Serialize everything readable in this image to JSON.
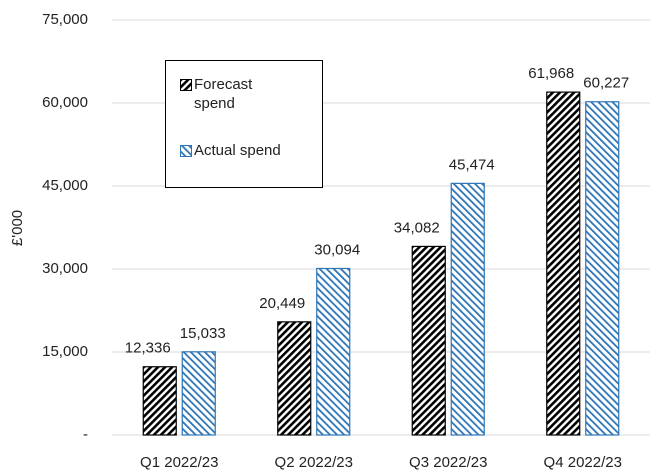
{
  "chart_data": {
    "type": "bar",
    "categories": [
      "Q1 2022/23",
      "Q2 2022/23",
      "Q3 2022/23",
      "Q4 2022/23"
    ],
    "series": [
      {
        "name": "Forecast spend",
        "color": "#000000",
        "values": [
          12336,
          20449,
          34082,
          61968
        ],
        "value_labels": [
          "12,336",
          "20,449",
          "34,082",
          "61,968"
        ]
      },
      {
        "name": "Actual spend",
        "color": "#2e75b6",
        "values": [
          15033,
          30094,
          45474,
          60227
        ],
        "value_labels": [
          "15,033",
          "30,094",
          "45,474",
          "60,227"
        ]
      }
    ],
    "y_label": "£'000",
    "ylim": [
      0,
      75000
    ],
    "yticks": [
      {
        "value": 0,
        "label": "-"
      },
      {
        "value": 15000,
        "label": "15,000"
      },
      {
        "value": 30000,
        "label": "30,000"
      },
      {
        "value": 45000,
        "label": "45,000"
      },
      {
        "value": 60000,
        "label": "60,000"
      },
      {
        "value": 75000,
        "label": "75,000"
      }
    ],
    "grid": true
  }
}
